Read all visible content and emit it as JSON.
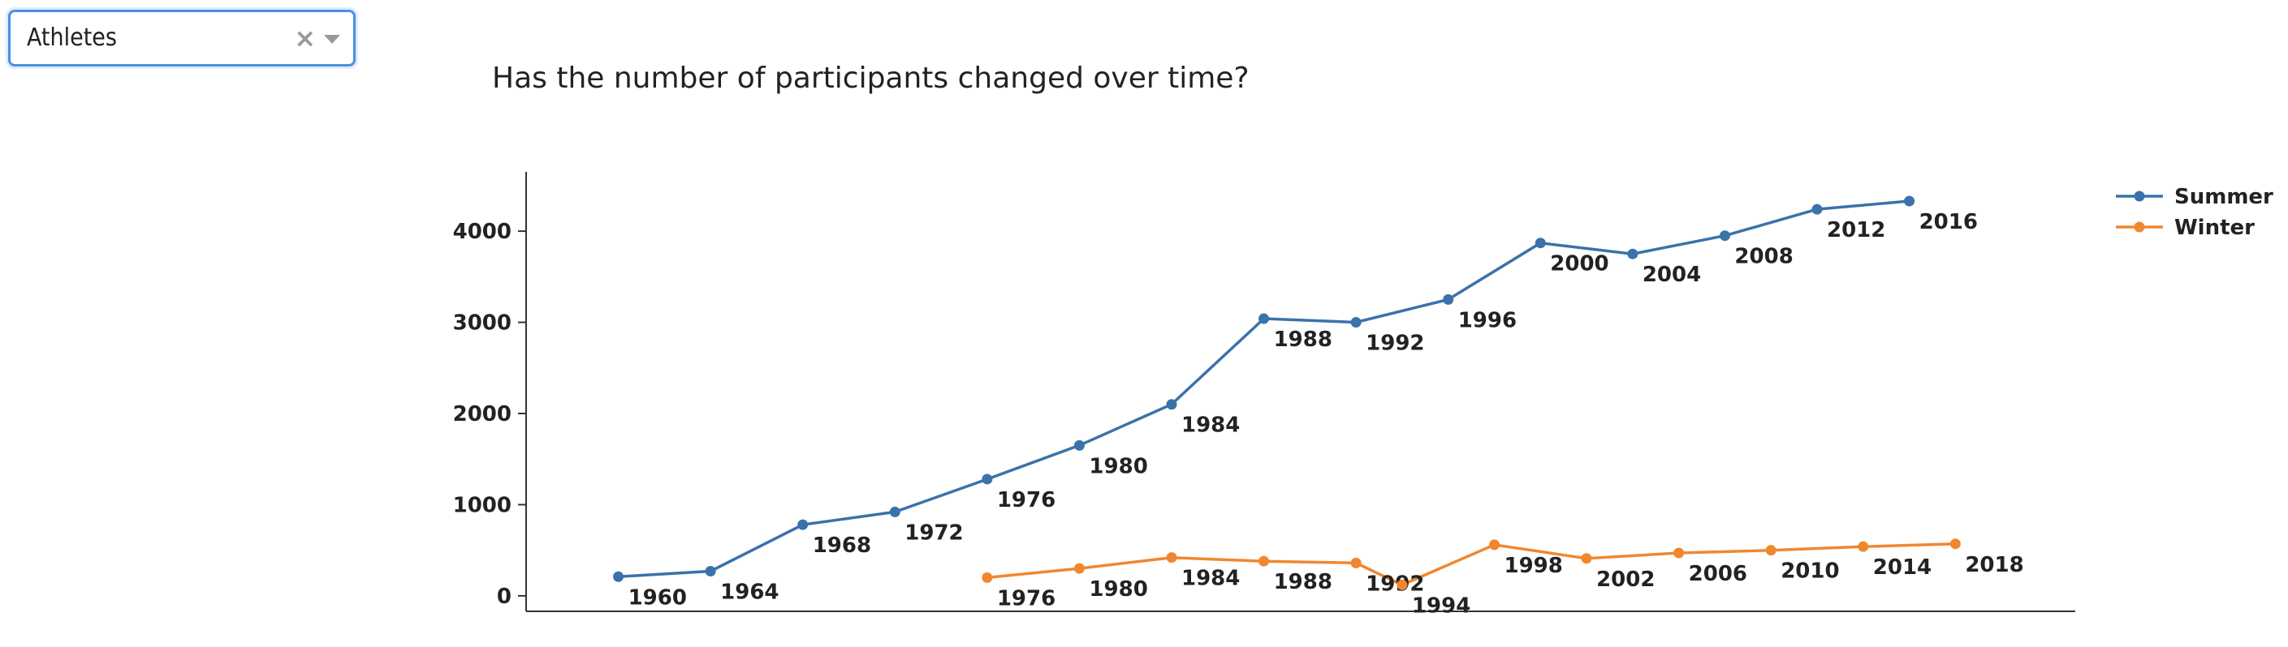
{
  "dropdown": {
    "selected": "Athletes",
    "clear_symbol": "×"
  },
  "question": "Has the number of participants changed over time?",
  "colors": {
    "summer": "#3a72aa",
    "winter": "#f0872f",
    "axis": "#333333",
    "dropdown_border": "#4a90e2"
  },
  "chart_data": {
    "type": "line",
    "title": "",
    "xlabel": "",
    "ylabel": "",
    "ylim": [
      -170,
      4650
    ],
    "yticks": [
      0,
      1000,
      2000,
      3000,
      4000
    ],
    "grid": false,
    "legend": "top-right",
    "series": [
      {
        "name": "Summer",
        "color": "#3a72aa",
        "points": [
          {
            "x": 1,
            "y": 210,
            "label": "1960"
          },
          {
            "x": 2,
            "y": 270,
            "label": "1964"
          },
          {
            "x": 3,
            "y": 780,
            "label": "1968"
          },
          {
            "x": 4,
            "y": 920,
            "label": "1972"
          },
          {
            "x": 5,
            "y": 1280,
            "label": "1976"
          },
          {
            "x": 6,
            "y": 1650,
            "label": "1980"
          },
          {
            "x": 7,
            "y": 2100,
            "label": "1984"
          },
          {
            "x": 8,
            "y": 3040,
            "label": "1988"
          },
          {
            "x": 9,
            "y": 3000,
            "label": "1992"
          },
          {
            "x": 10,
            "y": 3250,
            "label": "1996"
          },
          {
            "x": 11,
            "y": 3870,
            "label": "2000"
          },
          {
            "x": 12,
            "y": 3750,
            "label": "2004"
          },
          {
            "x": 13,
            "y": 3950,
            "label": "2008"
          },
          {
            "x": 14,
            "y": 4240,
            "label": "2012"
          },
          {
            "x": 15,
            "y": 4330,
            "label": "2016"
          }
        ]
      },
      {
        "name": "Winter",
        "color": "#f0872f",
        "points": [
          {
            "x": 5,
            "y": 200,
            "label": "1976"
          },
          {
            "x": 6,
            "y": 300,
            "label": "1980"
          },
          {
            "x": 7,
            "y": 420,
            "label": "1984"
          },
          {
            "x": 8,
            "y": 380,
            "label": "1988"
          },
          {
            "x": 9,
            "y": 360,
            "label": "1992"
          },
          {
            "x": 9.5,
            "y": 120,
            "label": "1994"
          },
          {
            "x": 10.5,
            "y": 560,
            "label": "1998"
          },
          {
            "x": 11.5,
            "y": 410,
            "label": "2002"
          },
          {
            "x": 12.5,
            "y": 470,
            "label": "2006"
          },
          {
            "x": 13.5,
            "y": 500,
            "label": "2010"
          },
          {
            "x": 14.5,
            "y": 540,
            "label": "2014"
          },
          {
            "x": 15.5,
            "y": 570,
            "label": "2018"
          }
        ]
      }
    ]
  }
}
